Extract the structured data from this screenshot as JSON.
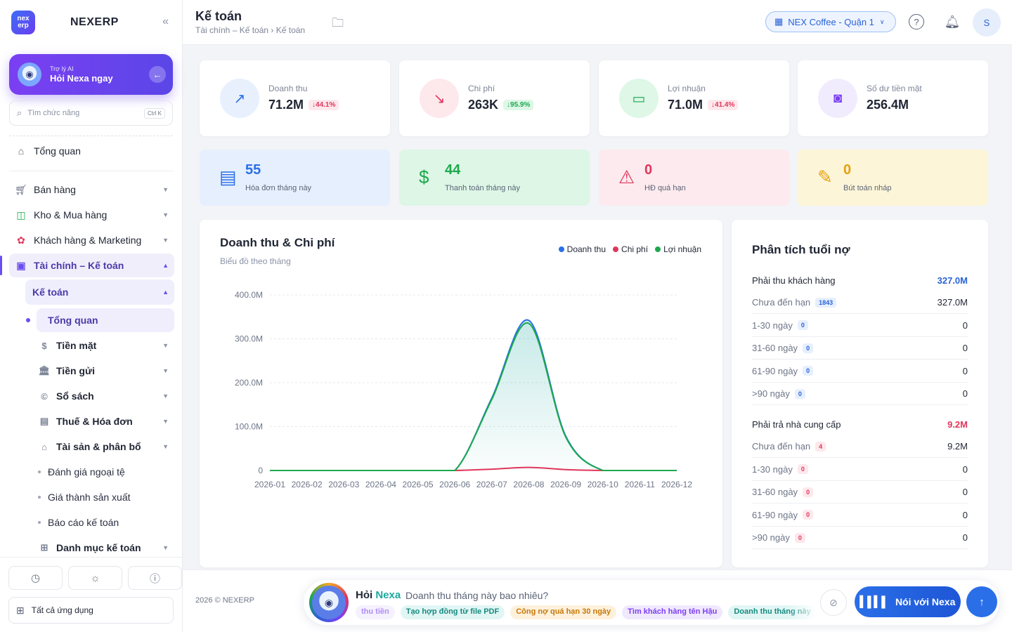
{
  "brand": {
    "logo_text": "nex erp",
    "name": "NEXERP"
  },
  "ai_card": {
    "small": "Trợ lý AI",
    "big": "Hỏi Nexa ngay"
  },
  "search": {
    "placeholder": "Tìm chức năng",
    "shortcut": "Ctrl K"
  },
  "nav": {
    "overview": "Tổng quan",
    "sales": "Bán hàng",
    "warehouse": "Kho & Mua hàng",
    "customers": "Khách hàng & Marketing",
    "finance": "Tài chính – Kế toán",
    "accounting": "Kế toán",
    "accounting_overview": "Tổng quan",
    "cash": "Tiền mặt",
    "deposit": "Tiền gửi",
    "books": "Sổ sách",
    "tax": "Thuế & Hóa đơn",
    "assets": "Tài sản & phân bổ",
    "fx": "Đánh giá ngoại tệ",
    "cost": "Giá thành sản xuất",
    "reports": "Báo cáo kế toán",
    "catalog": "Danh mục kế toán"
  },
  "sidebar_bottom": {
    "all_apps": "Tất cả ứng dụng"
  },
  "header": {
    "title": "Kế toán",
    "breadcrumb": "Tài chính – Kế toán › Kế toán",
    "branch": "NEX Coffee - Quận 1",
    "user_initial": "S"
  },
  "stats": [
    {
      "label": "Doanh thu",
      "value": "71.2M",
      "badge": "↓44.1%",
      "tone": "red"
    },
    {
      "label": "Chi phí",
      "value": "263K",
      "badge": "↓95.9%",
      "tone": "green"
    },
    {
      "label": "Lợi nhuận",
      "value": "71.0M",
      "badge": "↓41.4%",
      "tone": "red"
    },
    {
      "label": "Số dư tiền mặt",
      "value": "256.4M",
      "badge": "",
      "tone": ""
    }
  ],
  "tiles": [
    {
      "num": "55",
      "caption": "Hóa đơn tháng này"
    },
    {
      "num": "44",
      "caption": "Thanh toán tháng này"
    },
    {
      "num": "0",
      "caption": "HĐ quá hạn"
    },
    {
      "num": "0",
      "caption": "Bút toán nháp"
    }
  ],
  "chart_panel": {
    "title": "Doanh thu & Chi phí",
    "subtitle": "Biểu đồ theo tháng"
  },
  "chart_data": {
    "type": "area",
    "title": "Doanh thu & Chi phí",
    "subtitle": "Biểu đồ theo tháng",
    "categories": [
      "2026-01",
      "2026-02",
      "2026-03",
      "2026-04",
      "2026-05",
      "2026-06",
      "2026-07",
      "2026-08",
      "2026-09",
      "2026-10",
      "2026-11",
      "2026-12"
    ],
    "series": [
      {
        "name": "Doanh thu",
        "color": "#2a6fe8",
        "values": [
          0,
          0,
          0,
          0,
          0,
          0,
          165,
          342,
          78,
          0,
          0,
          0
        ]
      },
      {
        "name": "Chi phí",
        "color": "#e0365c",
        "values": [
          0,
          0,
          0,
          0,
          0,
          0,
          3,
          7,
          2,
          0,
          0,
          0
        ]
      },
      {
        "name": "Lợi nhuận",
        "color": "#1ba94c",
        "values": [
          0,
          0,
          0,
          0,
          0,
          0,
          162,
          335,
          76,
          0,
          0,
          0
        ]
      }
    ],
    "yticks": [
      "0",
      "100.0M",
      "200.0M",
      "300.0M",
      "400.0M"
    ],
    "ylim": [
      0,
      400
    ],
    "unit": "M",
    "grid": true,
    "legend": "top-right"
  },
  "aging": {
    "title": "Phân tích tuổi nợ",
    "receivable": {
      "label": "Phải thu khách hàng",
      "total": "327.0M",
      "rows": [
        {
          "label": "Chưa đến hạn",
          "count": "1843",
          "amount": "327.0M"
        },
        {
          "label": "1-30 ngày",
          "count": "0",
          "amount": "0"
        },
        {
          "label": "31-60 ngày",
          "count": "0",
          "amount": "0"
        },
        {
          "label": "61-90 ngày",
          "count": "0",
          "amount": "0"
        },
        {
          "label": ">90 ngày",
          "count": "0",
          "amount": "0"
        }
      ]
    },
    "payable": {
      "label": "Phải trả nhà cung cấp",
      "total": "9.2M",
      "rows": [
        {
          "label": "Chưa đến hạn",
          "count": "4",
          "amount": "9.2M"
        },
        {
          "label": "1-30 ngày",
          "count": "0",
          "amount": "0"
        },
        {
          "label": "31-60 ngày",
          "count": "0",
          "amount": "0"
        },
        {
          "label": "61-90 ngày",
          "count": "0",
          "amount": "0"
        },
        {
          "label": ">90 ngày",
          "count": "0",
          "amount": "0"
        }
      ]
    }
  },
  "footer": {
    "copyright": "2026 © NEXERP",
    "ask_prefix": "Hỏi",
    "ask_brand": "Nexa",
    "question": "Doanh thu tháng này bao nhiêu?",
    "chips": [
      "thu tiền",
      "Tạo hợp đồng từ file PDF",
      "Công nợ quá hạn 30 ngày",
      "Tìm khách hàng tên Hậu",
      "Doanh thu tháng này"
    ],
    "talk_label": "Nói với Nexa"
  },
  "colors": {
    "accent": "#6b4df0",
    "primary": "#2a6fe8",
    "red": "#e0365c",
    "green": "#1ba94c"
  }
}
